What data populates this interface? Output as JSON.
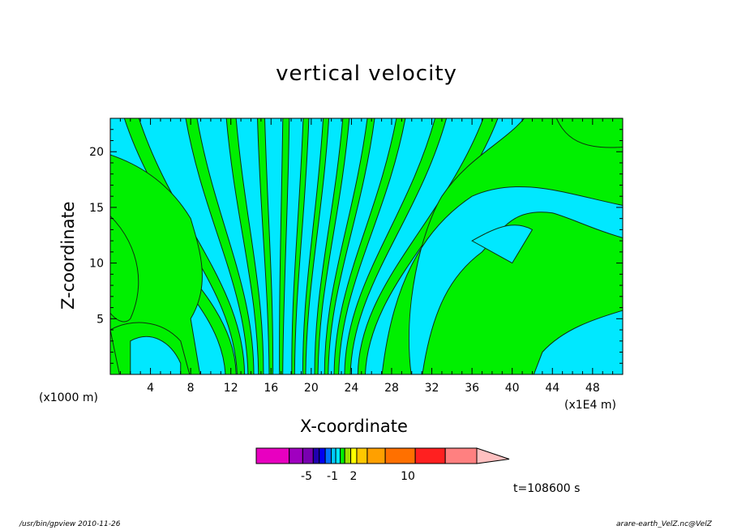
{
  "chart_data": {
    "type": "heatmap",
    "title": "vertical velocity",
    "xlabel": "X-coordinate",
    "ylabel": "Z-coordinate",
    "x_unit_left": "(x1000 m)",
    "x_unit_right": "(x1E4 m)",
    "x_ticks": [
      4,
      8,
      12,
      16,
      20,
      24,
      28,
      32,
      36,
      40,
      44,
      48
    ],
    "y_ticks": [
      5,
      10,
      15,
      20
    ],
    "xlim": [
      0,
      51
    ],
    "ylim": [
      0,
      23
    ],
    "fill_colors": {
      "positive_weak": "#00f000",
      "negative_weak": "#00e8ff"
    },
    "colorbar": {
      "colors": [
        "#e800c0",
        "#a000c0",
        "#7800b0",
        "#2000b0",
        "#0000f0",
        "#0070ff",
        "#00c8ff",
        "#00e8ff",
        "#00f000",
        "#a0e000",
        "#ffff00",
        "#ffc800",
        "#ffa000",
        "#ff7000",
        "#ff2020",
        "#ff8080",
        "#ffc0c0"
      ],
      "tick_labels": [
        "-5",
        "-1",
        "2",
        "10"
      ]
    },
    "annotations": {
      "time": "t=108600 s"
    }
  },
  "footer": {
    "left": "/usr/bin/gpview   2010-11-26",
    "right": "arare-earth_VelZ.nc@VelZ"
  }
}
